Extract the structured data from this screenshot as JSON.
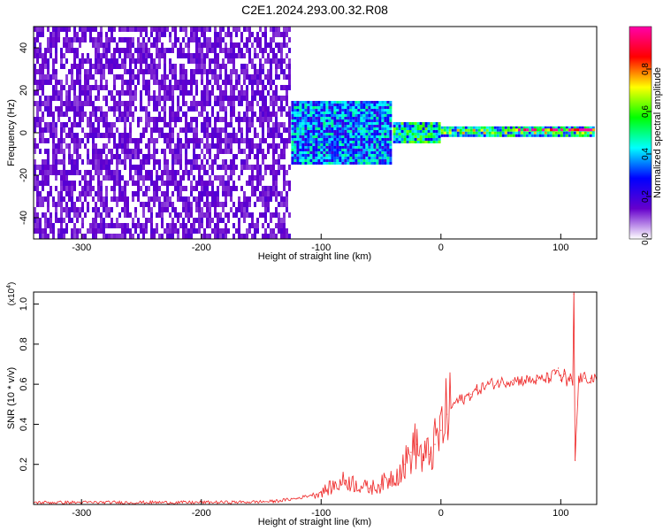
{
  "figure": {
    "title": "C2E1.2024.293.00.32.R08"
  },
  "colorbar": {
    "label": "Normalized spectral amplitude",
    "ticks": [
      "0.0",
      "0.2",
      "0.4",
      "0.6",
      "0.8"
    ],
    "colors": [
      "#ffffff",
      "#6600cc",
      "#0000ff",
      "#00ffff",
      "#00ff00",
      "#ffff00",
      "#ff0000",
      "#ff00aa"
    ]
  },
  "chart_data": [
    {
      "type": "heatmap",
      "title": "",
      "xlabel": "Height of straight line (km)",
      "ylabel": "Frequency (Hz)",
      "xlim": [
        -340,
        130
      ],
      "ylim": [
        -50,
        50
      ],
      "x_ticks": [
        "-300",
        "-200",
        "-100",
        "0",
        "100"
      ],
      "y_ticks": [
        "-40",
        "-20",
        "0",
        "20",
        "40"
      ],
      "colorbar_range": [
        0,
        1
      ],
      "regions": [
        {
          "x": [
            -340,
            -125
          ],
          "freq": [
            -50,
            50
          ],
          "amplitude": 0.12
        },
        {
          "x": [
            -125,
            -40
          ],
          "freq": [
            -15,
            15
          ],
          "amplitude": 0.35
        },
        {
          "x": [
            -40,
            0
          ],
          "freq": [
            -5,
            5
          ],
          "amplitude": 0.45
        },
        {
          "x": [
            0,
            130
          ],
          "freq": [
            -2,
            3
          ],
          "amplitude": 0.6
        },
        {
          "x": [
            60,
            130
          ],
          "freq": [
            0,
            2
          ],
          "amplitude": 0.9
        }
      ]
    },
    {
      "type": "line",
      "title": "",
      "xlabel": "Height of straight line (km)",
      "ylabel": "SNR (10 * v/v)",
      "yunit": "(x10",
      "yunit_exp": "4",
      "yunit_close": ")",
      "xlim": [
        -340,
        130
      ],
      "ylim": [
        0,
        1.06
      ],
      "x_ticks": [
        "-300",
        "-200",
        "-100",
        "0",
        "100"
      ],
      "y_ticks": [
        "0.2",
        "0.4",
        "0.6",
        "0.8",
        "1.0"
      ],
      "color": "#ee2222",
      "series": [
        {
          "x": [
            -340,
            -300,
            -250,
            -200,
            -160,
            -140,
            -120,
            -100,
            -80,
            -60,
            -50,
            -40,
            -30,
            -25,
            -20,
            -15,
            -10,
            -5,
            0,
            5,
            10,
            15,
            20,
            25,
            30,
            40,
            50,
            60,
            70,
            80,
            90,
            95,
            98,
            100,
            103,
            105,
            108,
            110,
            111,
            112,
            115,
            120,
            125,
            130
          ],
          "y": [
            0.01,
            0.01,
            0.01,
            0.01,
            0.012,
            0.015,
            0.03,
            0.06,
            0.12,
            0.08,
            0.1,
            0.14,
            0.2,
            0.26,
            0.3,
            0.22,
            0.25,
            0.3,
            0.37,
            0.45,
            0.5,
            0.52,
            0.53,
            0.55,
            0.57,
            0.6,
            0.61,
            0.62,
            0.62,
            0.62,
            0.63,
            0.65,
            0.68,
            0.62,
            0.65,
            0.6,
            0.63,
            0.6,
            1.05,
            0.22,
            0.63,
            0.63,
            0.63,
            0.62
          ]
        }
      ]
    }
  ]
}
